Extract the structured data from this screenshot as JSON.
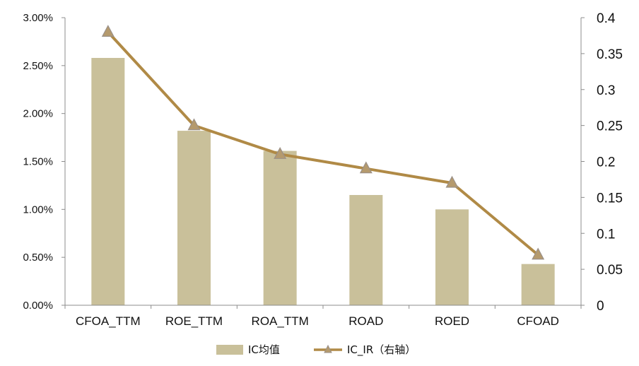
{
  "chart_data": {
    "type": "bar+line",
    "categories": [
      "CFOA_TTM",
      "ROE_TTM",
      "ROA_TTM",
      "ROAD",
      "ROED",
      "CFOAD"
    ],
    "series": [
      {
        "name": "IC均值",
        "type": "bar",
        "axis": "left",
        "values": [
          0.0258,
          0.0182,
          0.0161,
          0.0115,
          0.01,
          0.0043
        ]
      },
      {
        "name": "IC_IR（右轴）",
        "type": "line",
        "axis": "right",
        "marker": "triangle",
        "values": [
          0.38,
          0.25,
          0.21,
          0.19,
          0.17,
          0.07
        ]
      }
    ],
    "left_axis": {
      "ylim": [
        0,
        0.03
      ],
      "ticks": [
        0,
        0.005,
        0.01,
        0.015,
        0.02,
        0.025,
        0.03
      ],
      "tick_labels": [
        "0.00%",
        "0.50%",
        "1.00%",
        "1.50%",
        "2.00%",
        "2.50%",
        "3.00%"
      ]
    },
    "right_axis": {
      "ylim": [
        0,
        0.4
      ],
      "ticks": [
        0,
        0.05,
        0.1,
        0.15,
        0.2,
        0.25,
        0.3,
        0.35,
        0.4
      ],
      "tick_labels": [
        "0",
        "0.05",
        "0.1",
        "0.15",
        "0.2",
        "0.25",
        "0.3",
        "0.35",
        "0.4"
      ]
    },
    "grid": false,
    "legend": "bottom-center",
    "colors": {
      "bar": "#c9c09a",
      "line": "#b08a46",
      "marker_fill": "#b59a6d",
      "marker_edge": "#9a9088",
      "axis": "#8c8c8c"
    }
  }
}
